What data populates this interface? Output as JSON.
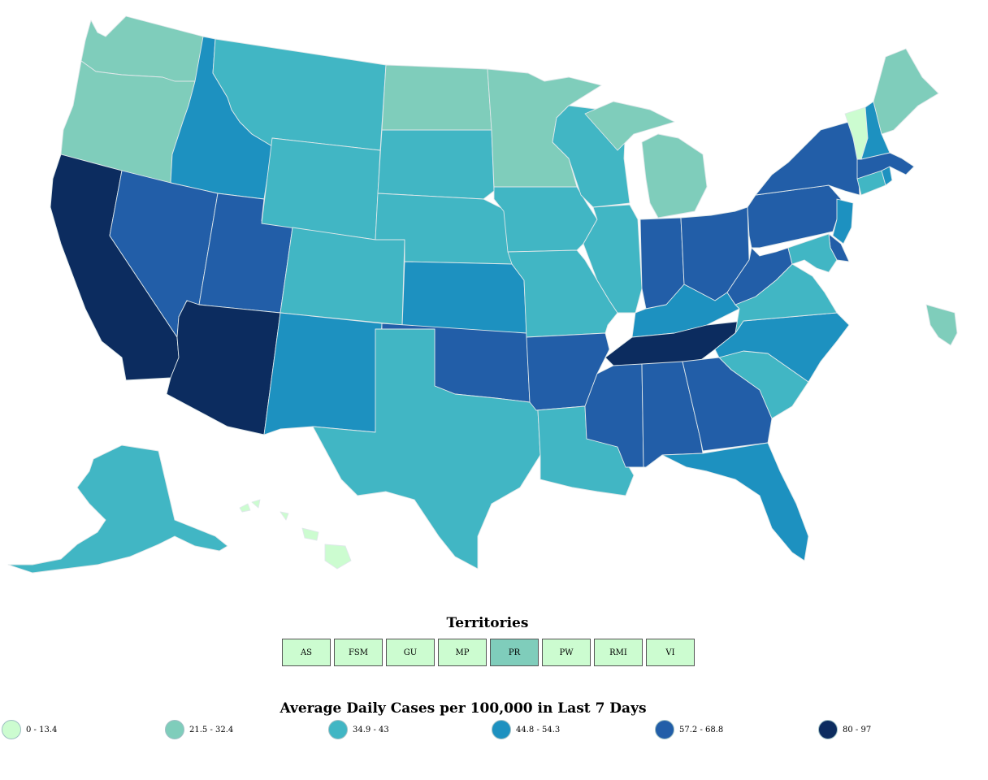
{
  "map": {
    "legend_title": "Average Daily Cases per 100,000 in Last 7 Days",
    "legend": [
      {
        "label": "0 - 13.4",
        "color": "#ccfcd0"
      },
      {
        "label": "21.5 - 32.4",
        "color": "#7fcdbb"
      },
      {
        "label": "34.9 - 43",
        "color": "#41b6c4"
      },
      {
        "label": "44.8 - 54.3",
        "color": "#1d91c0"
      },
      {
        "label": "57.2 - 68.8",
        "color": "#225ea8"
      },
      {
        "label": "80 - 97",
        "color": "#0c2c5f"
      }
    ],
    "territories_title": "Territories",
    "territories": [
      {
        "code": "AS",
        "bin": 0
      },
      {
        "code": "FSM",
        "bin": 0
      },
      {
        "code": "GU",
        "bin": 0
      },
      {
        "code": "MP",
        "bin": 0
      },
      {
        "code": "PR",
        "bin": 1
      },
      {
        "code": "PW",
        "bin": 0
      },
      {
        "code": "RMI",
        "bin": 0
      },
      {
        "code": "VI",
        "bin": 0
      }
    ],
    "state_bins": {
      "WA": 1,
      "OR": 1,
      "CA": 5,
      "ID": 3,
      "NV": 4,
      "UT": 4,
      "AZ": 5,
      "MT": 2,
      "WY": 2,
      "CO": 2,
      "NM": 3,
      "ND": 1,
      "SD": 2,
      "NE": 2,
      "KS": 3,
      "OK": 4,
      "TX": 2,
      "MN": 1,
      "IA": 2,
      "MO": 2,
      "AR": 4,
      "LA": 2,
      "WI": 2,
      "IL": 2,
      "MI": 1,
      "IN": 4,
      "OH": 4,
      "KY": 3,
      "TN": 5,
      "MS": 4,
      "AL": 4,
      "GA": 4,
      "FL": 3,
      "SC": 2,
      "NC": 3,
      "VA": 2,
      "WV": 4,
      "PA": 4,
      "NY": 4,
      "VT": 0,
      "NH": 3,
      "ME": 1,
      "MA": 4,
      "CT": 2,
      "RI": 3,
      "NJ": 3,
      "DE": 4,
      "MD": 2,
      "AK": 2,
      "HI": 0
    }
  }
}
